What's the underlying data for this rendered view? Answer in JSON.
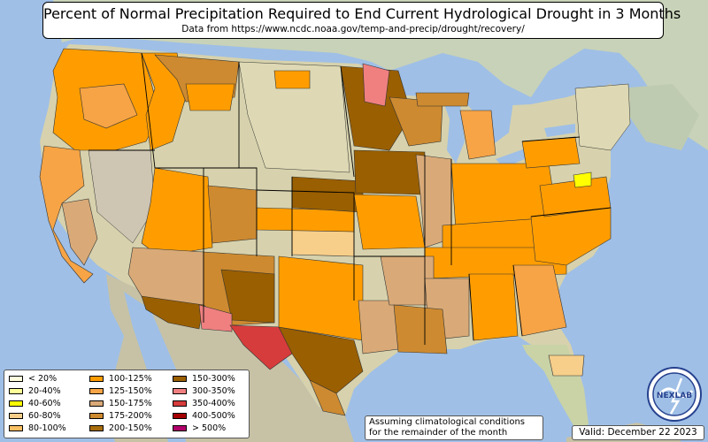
{
  "title": "Percent of Normal Precipitation Required to End Current Hydrological Drought in 3 Months",
  "subtitle": "Data from https://www.ncdc.noaa.gov/temp-and-precip/drought/recovery/",
  "legend": [
    {
      "label": "< 20%",
      "color": "#ffffe0"
    },
    {
      "label": "20-40%",
      "color": "#ffff99"
    },
    {
      "label": "40-60%",
      "color": "#ffff00"
    },
    {
      "label": "60-80%",
      "color": "#f7cf8a"
    },
    {
      "label": "80-100%",
      "color": "#fbbf63"
    },
    {
      "label": "100-125%",
      "color": "#ff9d00"
    },
    {
      "label": "125-150%",
      "color": "#f6a446"
    },
    {
      "label": "150-175%",
      "color": "#d9aa78"
    },
    {
      "label": "175-200%",
      "color": "#cd8a30"
    },
    {
      "label": "200-150%",
      "color": "#a86d0b"
    },
    {
      "label": "150-300%",
      "color": "#9a5f00"
    },
    {
      "label": "300-350%",
      "color": "#f08080"
    },
    {
      "label": "350-400%",
      "color": "#d63c3c"
    },
    {
      "label": "400-500%",
      "color": "#a40000"
    },
    {
      "label": "> 500%",
      "color": "#b0006a"
    }
  ],
  "footnote": {
    "line1": "Assuming climatological conditions",
    "line2": "for the remainder of the month"
  },
  "valid": "Valid: December 22 2023",
  "logo_text": "NEXLAB",
  "colors": {
    "ocean": "#9fbfe6",
    "land_green": "#b9c9a2",
    "plains": "#ded9b4",
    "desert": "#cec5b3",
    "mexico": "#c7c2a6",
    "canada": "#c8d2b8"
  }
}
